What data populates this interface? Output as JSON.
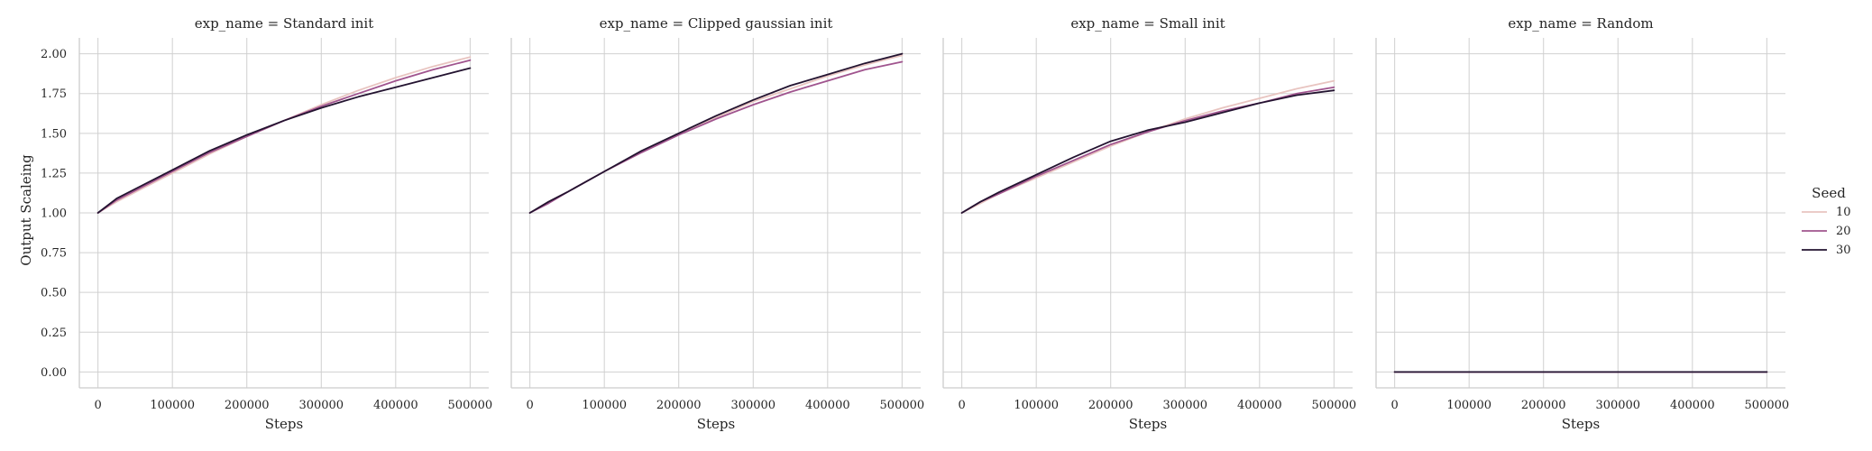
{
  "figure": {
    "y_label": "Output Scaleing",
    "x_label": "Steps"
  },
  "legend": {
    "title": "Seed",
    "placement": "right",
    "entries": [
      {
        "label": "10",
        "color": "#e8c4c0"
      },
      {
        "label": "20",
        "color": "#a0548e"
      },
      {
        "label": "30",
        "color": "#231330"
      }
    ]
  },
  "chart_data": [
    {
      "type": "line",
      "title": "exp_name = Standard init",
      "xlabel": "Steps",
      "ylabel": "Output Scaleing",
      "xlim": [
        -25000,
        525000
      ],
      "ylim": [
        -0.1,
        2.1
      ],
      "xticks": [
        0,
        100000,
        200000,
        300000,
        400000,
        500000
      ],
      "yticks": [
        0.0,
        0.25,
        0.5,
        0.75,
        1.0,
        1.25,
        1.5,
        1.75,
        2.0
      ],
      "ytick_labels": [
        "0.00",
        "0.25",
        "0.50",
        "0.75",
        "1.00",
        "1.25",
        "1.50",
        "1.75",
        "2.00"
      ],
      "grid": true,
      "x": [
        0,
        25000,
        50000,
        100000,
        150000,
        200000,
        250000,
        300000,
        350000,
        400000,
        450000,
        500000
      ],
      "series": [
        {
          "name": "10",
          "color": "#e8c4c0",
          "values": [
            1.0,
            1.07,
            1.13,
            1.25,
            1.37,
            1.48,
            1.58,
            1.68,
            1.77,
            1.85,
            1.92,
            1.98
          ]
        },
        {
          "name": "20",
          "color": "#a0548e",
          "values": [
            1.0,
            1.08,
            1.14,
            1.26,
            1.38,
            1.48,
            1.58,
            1.67,
            1.75,
            1.83,
            1.9,
            1.96
          ]
        },
        {
          "name": "30",
          "color": "#231330",
          "values": [
            1.0,
            1.09,
            1.15,
            1.27,
            1.39,
            1.49,
            1.58,
            1.66,
            1.73,
            1.79,
            1.85,
            1.91
          ]
        }
      ]
    },
    {
      "type": "line",
      "title": "exp_name = Clipped gaussian init",
      "xlabel": "Steps",
      "ylabel": "",
      "xlim": [
        -25000,
        525000
      ],
      "ylim": [
        -0.1,
        2.1
      ],
      "xticks": [
        0,
        100000,
        200000,
        300000,
        400000,
        500000
      ],
      "yticks": [
        0.0,
        0.25,
        0.5,
        0.75,
        1.0,
        1.25,
        1.5,
        1.75,
        2.0
      ],
      "grid": true,
      "x": [
        0,
        25000,
        50000,
        100000,
        150000,
        200000,
        250000,
        300000,
        350000,
        400000,
        450000,
        500000
      ],
      "series": [
        {
          "name": "10",
          "color": "#e8c4c0",
          "values": [
            1.0,
            1.07,
            1.13,
            1.26,
            1.38,
            1.5,
            1.6,
            1.7,
            1.78,
            1.86,
            1.93,
            1.99
          ]
        },
        {
          "name": "20",
          "color": "#a0548e",
          "values": [
            1.0,
            1.06,
            1.13,
            1.26,
            1.38,
            1.49,
            1.59,
            1.68,
            1.76,
            1.83,
            1.9,
            1.95
          ]
        },
        {
          "name": "30",
          "color": "#231330",
          "values": [
            1.0,
            1.07,
            1.13,
            1.26,
            1.39,
            1.5,
            1.61,
            1.71,
            1.8,
            1.87,
            1.94,
            2.0
          ]
        }
      ]
    },
    {
      "type": "line",
      "title": "exp_name = Small init",
      "xlabel": "Steps",
      "ylabel": "",
      "xlim": [
        -25000,
        525000
      ],
      "ylim": [
        -0.1,
        2.1
      ],
      "xticks": [
        0,
        100000,
        200000,
        300000,
        400000,
        500000
      ],
      "yticks": [
        0.0,
        0.25,
        0.5,
        0.75,
        1.0,
        1.25,
        1.5,
        1.75,
        2.0
      ],
      "grid": true,
      "x": [
        0,
        25000,
        50000,
        100000,
        150000,
        200000,
        250000,
        300000,
        350000,
        400000,
        450000,
        500000
      ],
      "series": [
        {
          "name": "10",
          "color": "#e8c4c0",
          "values": [
            1.0,
            1.06,
            1.12,
            1.22,
            1.32,
            1.42,
            1.51,
            1.59,
            1.66,
            1.72,
            1.78,
            1.83
          ]
        },
        {
          "name": "20",
          "color": "#a0548e",
          "values": [
            1.0,
            1.07,
            1.12,
            1.23,
            1.33,
            1.43,
            1.51,
            1.58,
            1.64,
            1.69,
            1.75,
            1.79
          ]
        },
        {
          "name": "30",
          "color": "#231330",
          "values": [
            1.0,
            1.07,
            1.13,
            1.24,
            1.35,
            1.45,
            1.52,
            1.57,
            1.63,
            1.69,
            1.74,
            1.77
          ]
        }
      ]
    },
    {
      "type": "line",
      "title": "exp_name = Random",
      "xlabel": "Steps",
      "ylabel": "",
      "xlim": [
        -25000,
        525000
      ],
      "ylim": [
        -0.1,
        2.1
      ],
      "xticks": [
        0,
        100000,
        200000,
        300000,
        400000,
        500000
      ],
      "yticks": [
        0.0,
        0.25,
        0.5,
        0.75,
        1.0,
        1.25,
        1.5,
        1.75,
        2.0
      ],
      "grid": true,
      "x": [
        0,
        500000
      ],
      "series": [
        {
          "name": "10",
          "color": "#e8c4c0",
          "values": [
            0.0,
            0.0
          ]
        },
        {
          "name": "20",
          "color": "#a0548e",
          "values": [
            0.0,
            0.0
          ]
        },
        {
          "name": "30",
          "color": "#231330",
          "values": [
            0.0,
            0.0
          ]
        }
      ]
    }
  ]
}
